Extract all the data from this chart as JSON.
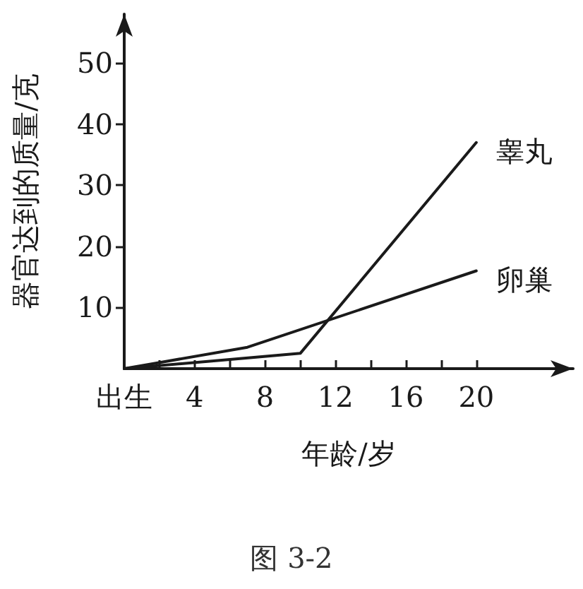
{
  "chart_data": {
    "type": "line",
    "xlabel": "年龄/岁",
    "ylabel": "器官达到的质量/克",
    "annotations": [
      "图 3-2"
    ],
    "xlim": [
      0,
      25.5
    ],
    "ylim": [
      0,
      58
    ],
    "xticks": [
      {
        "value": 0,
        "label": "出生"
      },
      {
        "value": 2,
        "label": null
      },
      4,
      {
        "value": 6,
        "label": null
      },
      8,
      {
        "value": 10,
        "label": null
      },
      12,
      {
        "value": 14,
        "label": null
      },
      16,
      {
        "value": 18,
        "label": null
      },
      20
    ],
    "yticks": [
      10,
      20,
      30,
      40,
      50
    ],
    "series": [
      {
        "name": "睾丸",
        "color": "#1a1a1a",
        "x": [
          0,
          10,
          20
        ],
        "values": [
          0,
          2.5,
          37
        ]
      },
      {
        "name": "卵巢",
        "color": "#1a1a1a",
        "x": [
          0,
          7,
          20
        ],
        "values": [
          0,
          3.5,
          16
        ]
      }
    ],
    "grid": false,
    "legend": false,
    "marker": "none",
    "line_style": "solid"
  }
}
